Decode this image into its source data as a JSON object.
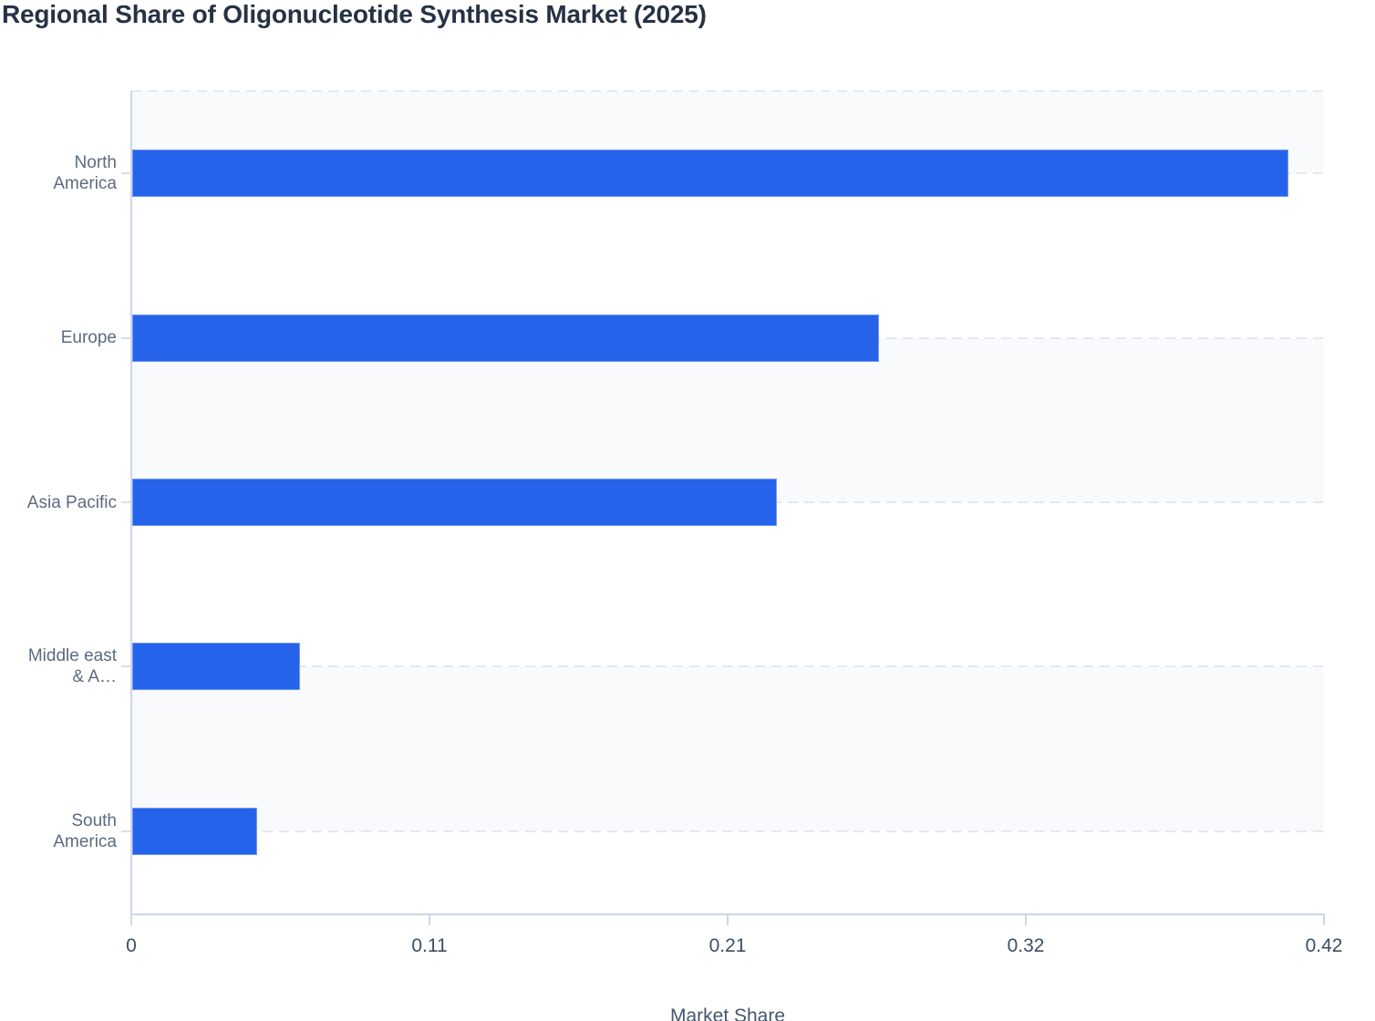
{
  "chart_data": {
    "type": "bar",
    "orientation": "horizontal",
    "title": "Regional Share of Oligonucleotide Synthesis Market (2025)",
    "categories": [
      "North America",
      "Europe",
      "Asia Pacific",
      "Middle east & A…",
      "South America"
    ],
    "category_display_lines": [
      [
        "North",
        "America"
      ],
      [
        "Europe"
      ],
      [
        "Asia Pacific"
      ],
      [
        "Middle east",
        "& A…"
      ],
      [
        "South",
        "America"
      ]
    ],
    "values": [
      0.407,
      0.263,
      0.227,
      0.059,
      0.044
    ],
    "xlabel": "Market Share",
    "x_ticks": [
      "0",
      "0.11",
      "0.21",
      "0.32",
      "0.42"
    ],
    "xlim": [
      0,
      0.42
    ],
    "grid": "dashed horizontal lines at category centers, alternating row bands, no legend",
    "colors": {
      "bar": "#2563eb",
      "alternate_band": "#f8fafc",
      "grid_dash": "#e4e8ee",
      "axis_line": "#ccd6eb",
      "title_text": "#263244",
      "category_label_text": "#5c6b7f",
      "tick_label_text": "#3e4e63"
    }
  }
}
